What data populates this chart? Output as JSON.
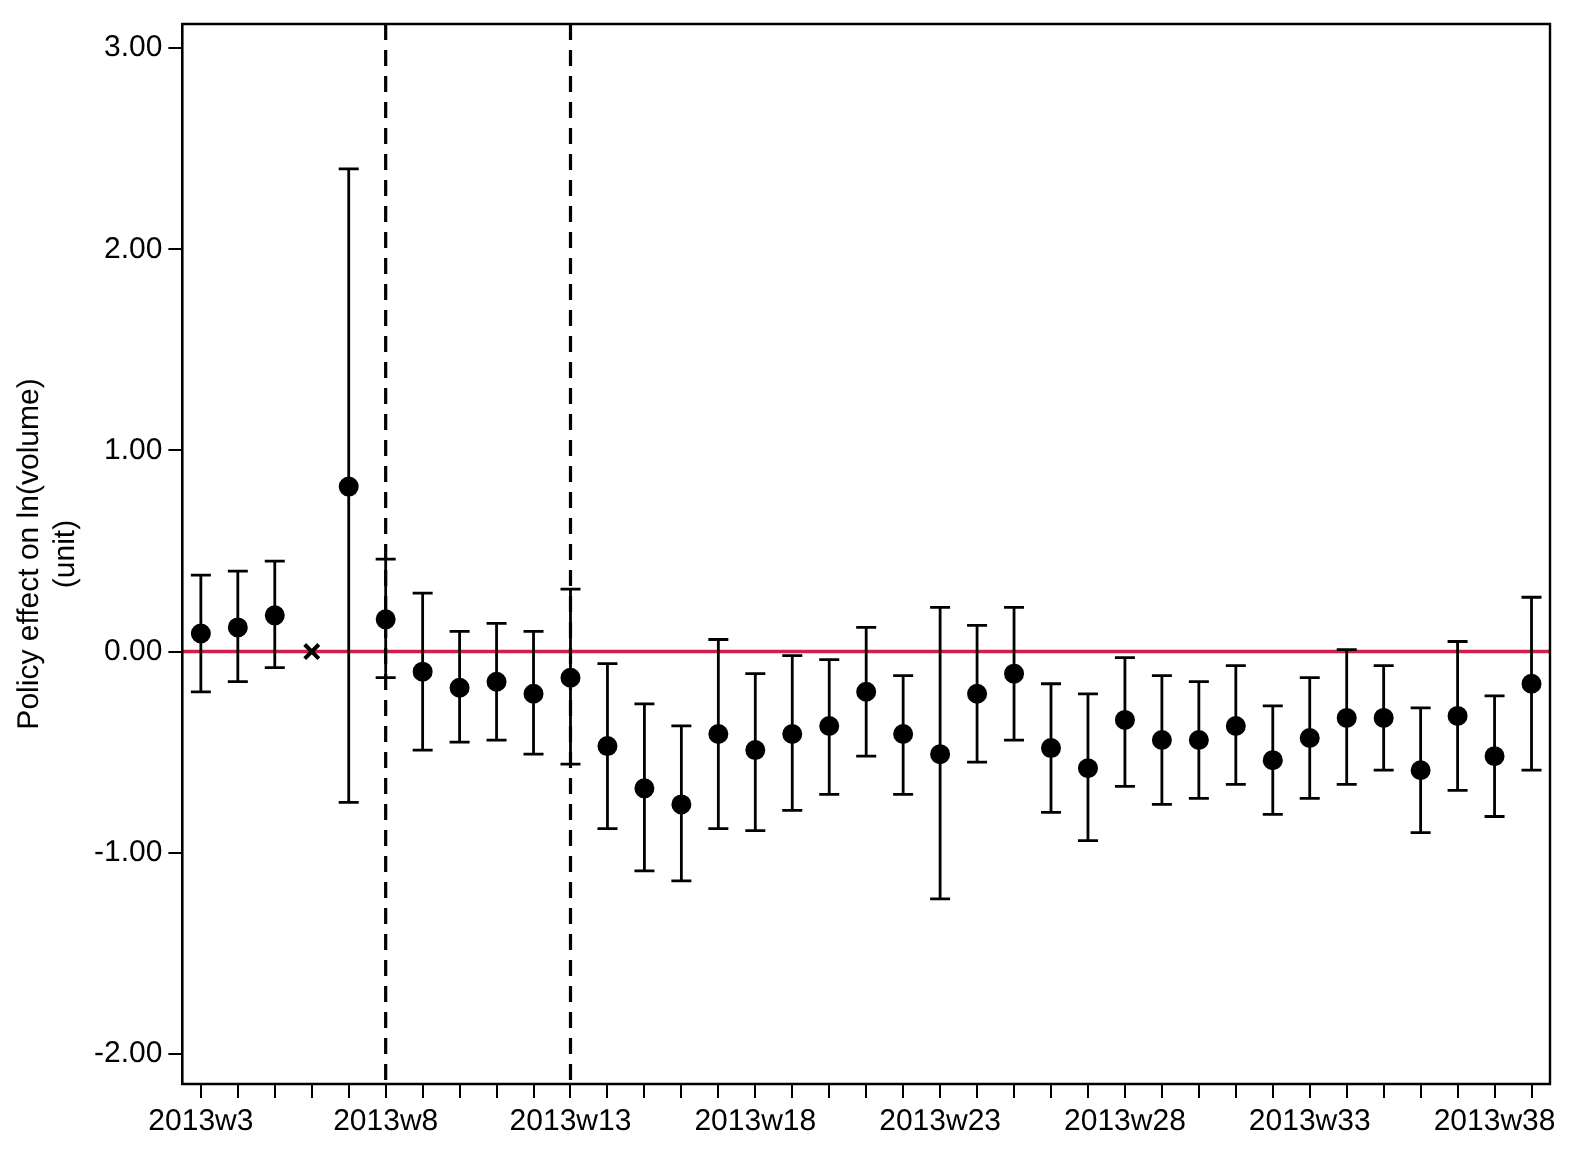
{
  "chart_data": {
    "type": "scatter",
    "ylabel": "Policy effect on ln(volume)\n(unit)",
    "categories": [
      "2013w3",
      null,
      null,
      null,
      null,
      "2013w8",
      null,
      null,
      null,
      null,
      "2013w13",
      null,
      null,
      null,
      null,
      "2013w18",
      null,
      null,
      null,
      null,
      "2013w23",
      null,
      null,
      null,
      null,
      "2013w28",
      null,
      null,
      null,
      null,
      "2013w33",
      null,
      null,
      null,
      null,
      "2013w38",
      null
    ],
    "series": [
      {
        "color": "#000000",
        "marker": "circle",
        "values": [
          0.09,
          0.12,
          0.18,
          null,
          0.82,
          0.16,
          -0.1,
          -0.18,
          -0.15,
          -0.21,
          -0.13,
          -0.47,
          -0.68,
          -0.76,
          -0.41,
          -0.49,
          -0.41,
          -0.37,
          -0.2,
          -0.41,
          -0.51,
          -0.21,
          -0.11,
          -0.48,
          -0.58,
          -0.34,
          -0.44,
          -0.44,
          -0.37,
          -0.54,
          -0.43,
          -0.33,
          -0.33,
          -0.59,
          -0.32,
          -0.52,
          -0.16
        ],
        "errors": [
          [
            -0.2,
            0.38
          ],
          [
            -0.15,
            0.4
          ],
          [
            -0.08,
            0.45
          ],
          null,
          [
            -0.75,
            2.4
          ],
          [
            -0.13,
            0.46
          ],
          [
            -0.49,
            0.29
          ],
          [
            -0.45,
            0.1
          ],
          [
            -0.44,
            0.14
          ],
          [
            -0.51,
            0.1
          ],
          [
            -0.56,
            0.31
          ],
          [
            -0.88,
            -0.06
          ],
          [
            -1.09,
            -0.26
          ],
          [
            -1.14,
            -0.37
          ],
          [
            -0.88,
            0.06
          ],
          [
            -0.89,
            -0.11
          ],
          [
            -0.79,
            -0.02
          ],
          [
            -0.71,
            -0.04
          ],
          [
            -0.52,
            0.12
          ],
          [
            -0.71,
            -0.12
          ],
          [
            -1.23,
            0.22
          ],
          [
            -0.55,
            0.13
          ],
          [
            -0.44,
            0.22
          ],
          [
            -0.8,
            -0.16
          ],
          [
            -0.94,
            -0.21
          ],
          [
            -0.67,
            -0.03
          ],
          [
            -0.76,
            -0.12
          ],
          [
            -0.73,
            -0.15
          ],
          [
            -0.66,
            -0.07
          ],
          [
            -0.81,
            -0.27
          ],
          [
            -0.73,
            -0.13
          ],
          [
            -0.66,
            0.01
          ],
          [
            -0.59,
            -0.07
          ],
          [
            -0.9,
            -0.28
          ],
          [
            -0.69,
            0.05
          ],
          [
            -0.82,
            -0.22
          ],
          [
            -0.59,
            0.27
          ]
        ]
      },
      {
        "color": "#000000",
        "marker": "cross",
        "values": [
          null,
          null,
          null,
          0,
          null,
          null,
          null,
          null,
          null,
          null,
          null,
          null,
          null,
          null,
          null,
          null,
          null,
          null,
          null,
          null,
          null,
          null,
          null,
          null,
          null,
          null,
          null,
          null,
          null,
          null,
          null,
          null,
          null,
          null,
          null,
          null,
          null
        ]
      }
    ],
    "ylim": [
      -2.15,
      3.12
    ],
    "yticks": [
      {
        "value": -2,
        "label": "-2.00"
      },
      {
        "value": -1,
        "label": "-1.00"
      },
      {
        "value": 0,
        "label": "0.00"
      },
      {
        "value": 1,
        "label": "1.00"
      },
      {
        "value": 2,
        "label": "2.00"
      },
      {
        "value": 3,
        "label": "3.00"
      }
    ],
    "ref_lines": [
      {
        "axis": "y",
        "value": 0,
        "color": "#d0204a",
        "line_style": "solid"
      },
      {
        "axis": "x",
        "value": "2013w8",
        "color": "#000000",
        "line_style": "dashed"
      },
      {
        "axis": "x",
        "value": "2013w13",
        "color": "#000000",
        "line_style": "dashed"
      }
    ],
    "grid": false,
    "legend": false
  }
}
